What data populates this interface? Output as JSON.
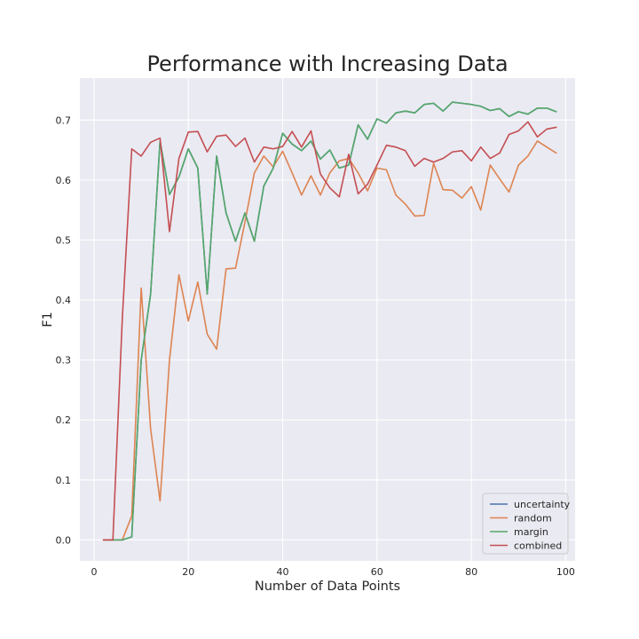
{
  "chart_data": {
    "type": "line",
    "title": "Performance with Increasing Data",
    "xlabel": "Number of Data Points",
    "ylabel": "F1",
    "xlim": [
      -3,
      102
    ],
    "ylim": [
      -0.035,
      0.77
    ],
    "xticks": [
      0,
      20,
      40,
      60,
      80,
      100
    ],
    "yticks": [
      0.0,
      0.1,
      0.2,
      0.3,
      0.4,
      0.5,
      0.6,
      0.7
    ],
    "grid": true,
    "legend_position": "bottom-right",
    "x": [
      2,
      4,
      6,
      8,
      10,
      12,
      14,
      16,
      18,
      20,
      22,
      24,
      26,
      28,
      30,
      32,
      34,
      36,
      38,
      40,
      42,
      44,
      46,
      48,
      50,
      52,
      54,
      56,
      58,
      60,
      62,
      64,
      66,
      68,
      70,
      72,
      74,
      76,
      78,
      80,
      82,
      84,
      86,
      88,
      90,
      92,
      94,
      96,
      98
    ],
    "series": [
      {
        "name": "uncertainty",
        "color": "#4c72b0",
        "values": [
          0.0,
          0.0,
          0.0,
          0.005,
          0.3,
          0.41,
          0.665,
          0.576,
          0.605,
          0.652,
          0.62,
          0.41,
          0.64,
          0.545,
          0.498,
          0.545,
          0.498,
          0.59,
          0.62,
          0.678,
          0.66,
          0.649,
          0.665,
          0.635,
          0.65,
          0.62,
          0.625,
          0.692,
          0.668,
          0.702,
          0.695,
          0.712,
          0.715,
          0.712,
          0.726,
          0.728,
          0.715,
          0.73,
          0.728,
          0.726,
          0.723,
          0.716,
          0.719,
          0.706,
          0.714,
          0.71,
          0.72,
          0.72,
          0.714
        ]
      },
      {
        "name": "random",
        "color": "#dd8452",
        "values": [
          0.0,
          0.0,
          0.0,
          0.04,
          0.42,
          0.185,
          0.065,
          0.3,
          0.442,
          0.365,
          0.43,
          0.343,
          0.318,
          0.452,
          0.453,
          0.53,
          0.612,
          0.64,
          0.622,
          0.648,
          0.612,
          0.575,
          0.607,
          0.575,
          0.612,
          0.632,
          0.636,
          0.612,
          0.582,
          0.62,
          0.617,
          0.575,
          0.56,
          0.54,
          0.541,
          0.628,
          0.584,
          0.583,
          0.57,
          0.589,
          0.55,
          0.625,
          0.602,
          0.58,
          0.625,
          0.64,
          0.665,
          0.655,
          0.645
        ]
      },
      {
        "name": "margin",
        "color": "#55a868",
        "values": [
          0.0,
          0.0,
          0.0,
          0.005,
          0.3,
          0.41,
          0.665,
          0.576,
          0.605,
          0.652,
          0.62,
          0.41,
          0.64,
          0.545,
          0.498,
          0.545,
          0.498,
          0.59,
          0.62,
          0.678,
          0.66,
          0.649,
          0.665,
          0.635,
          0.65,
          0.62,
          0.625,
          0.692,
          0.668,
          0.702,
          0.695,
          0.712,
          0.715,
          0.712,
          0.726,
          0.728,
          0.715,
          0.73,
          0.728,
          0.726,
          0.723,
          0.716,
          0.719,
          0.706,
          0.714,
          0.71,
          0.72,
          0.72,
          0.714
        ]
      },
      {
        "name": "combined",
        "color": "#c44e52",
        "values": [
          0.0,
          0.0,
          0.37,
          0.652,
          0.64,
          0.663,
          0.67,
          0.514,
          0.636,
          0.68,
          0.681,
          0.647,
          0.673,
          0.675,
          0.656,
          0.67,
          0.63,
          0.655,
          0.652,
          0.656,
          0.681,
          0.655,
          0.682,
          0.61,
          0.587,
          0.572,
          0.643,
          0.577,
          0.593,
          0.625,
          0.658,
          0.655,
          0.649,
          0.623,
          0.636,
          0.63,
          0.636,
          0.647,
          0.649,
          0.632,
          0.655,
          0.636,
          0.645,
          0.676,
          0.682,
          0.697,
          0.672,
          0.685,
          0.688
        ]
      }
    ]
  }
}
